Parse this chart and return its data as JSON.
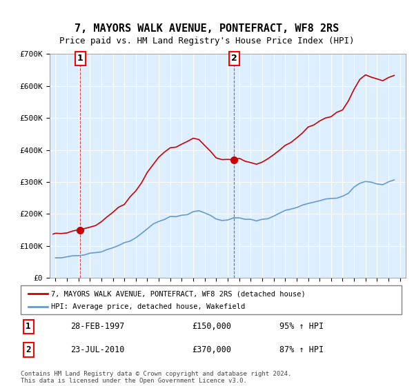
{
  "title": "7, MAYORS WALK AVENUE, PONTEFRACT, WF8 2RS",
  "subtitle": "Price paid vs. HM Land Registry's House Price Index (HPI)",
  "legend_label_red": "7, MAYORS WALK AVENUE, PONTEFRACT, WF8 2RS (detached house)",
  "legend_label_blue": "HPI: Average price, detached house, Wakefield",
  "sale1_label": "1",
  "sale1_date": "28-FEB-1997",
  "sale1_price": "£150,000",
  "sale1_hpi": "95% ↑ HPI",
  "sale1_x": 1997.15,
  "sale1_y": 150000,
  "sale2_label": "2",
  "sale2_date": "23-JUL-2010",
  "sale2_price": "£370,000",
  "sale2_hpi": "87% ↑ HPI",
  "sale2_x": 2010.55,
  "sale2_y": 370000,
  "ylim": [
    0,
    700000
  ],
  "xlim": [
    1994.5,
    2025.5
  ],
  "yticks": [
    0,
    100000,
    200000,
    300000,
    400000,
    500000,
    600000,
    700000
  ],
  "ytick_labels": [
    "£0",
    "£100K",
    "£200K",
    "£300K",
    "£400K",
    "£500K",
    "£600K",
    "£700K"
  ],
  "background_color": "#ddeeff",
  "plot_bg_color": "#ddeeff",
  "footer": "Contains HM Land Registry data © Crown copyright and database right 2024.\nThis data is licensed under the Open Government Licence v3.0.",
  "red_color": "#cc0000",
  "blue_color": "#6699cc",
  "dashed_red": "#cc0000"
}
